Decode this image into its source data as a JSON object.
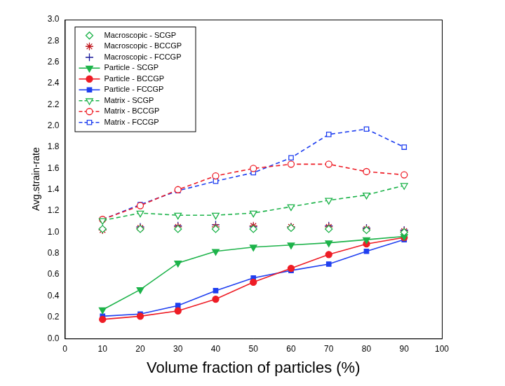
{
  "chart_data": {
    "type": "line",
    "x_label": "Volume fraction of particles (%)",
    "y_label": "Avg.strain-rate",
    "x": [
      10,
      20,
      30,
      40,
      50,
      60,
      70,
      80,
      90
    ],
    "xlim": [
      0,
      100
    ],
    "xticks": [
      0,
      10,
      20,
      30,
      40,
      50,
      60,
      70,
      80,
      90,
      100
    ],
    "ylim": [
      0,
      3
    ],
    "yticks": [
      {
        "value": 0,
        "label": "0.0"
      },
      0.2,
      0.4,
      0.6,
      0.8,
      {
        "value": 1,
        "label": "1.0"
      },
      1.2,
      1.4,
      1.6,
      1.8,
      {
        "value": 2,
        "label": "2.0"
      },
      2.2,
      2.4,
      2.6,
      2.8,
      {
        "value": 3,
        "label": "3.0"
      }
    ],
    "grid": false,
    "legend": "upper left",
    "series": [
      {
        "name": "Macroscopic - SCGP",
        "color": "#1db34a",
        "marker": "open_diamond",
        "line_style": "none",
        "values": [
          1.03,
          1.03,
          1.03,
          1.03,
          1.03,
          1.04,
          1.03,
          1.02,
          1.0
        ]
      },
      {
        "name": "Macroscopic - BCCGP",
        "color": "#c0181f",
        "marker": "star",
        "line_style": "none",
        "values": [
          1.02,
          1.04,
          1.05,
          1.05,
          1.06,
          1.05,
          1.05,
          1.03,
          1.01
        ]
      },
      {
        "name": "Macroscopic - FCCGP",
        "color": "#1a1a9a",
        "marker": "plus",
        "line_style": "none",
        "values": [
          1.03,
          1.05,
          1.06,
          1.07,
          1.05,
          1.05,
          1.06,
          1.04,
          1.02
        ]
      },
      {
        "name": "Particle - SCGP",
        "color": "#1db34a",
        "marker": "triangle_down",
        "line_style": "solid",
        "values": [
          0.27,
          0.46,
          0.71,
          0.82,
          0.86,
          0.88,
          0.9,
          0.93,
          0.96
        ]
      },
      {
        "name": "Particle - BCCGP",
        "color": "#ee1c25",
        "marker": "circle",
        "line_style": "solid",
        "values": [
          0.18,
          0.21,
          0.26,
          0.37,
          0.53,
          0.66,
          0.79,
          0.89,
          0.95
        ]
      },
      {
        "name": "Particle - FCCGP",
        "color": "#1f3ff0",
        "marker": "square",
        "line_style": "solid",
        "values": [
          0.21,
          0.23,
          0.31,
          0.45,
          0.57,
          0.64,
          0.7,
          0.82,
          0.93
        ]
      },
      {
        "name": "Matrix - SCGP",
        "color": "#1db34a",
        "marker": "open_triangle_down",
        "line_style": "dashed",
        "values": [
          1.11,
          1.18,
          1.16,
          1.16,
          1.18,
          1.24,
          1.3,
          1.35,
          1.44
        ]
      },
      {
        "name": "Matrix - BCCGP",
        "color": "#ee1c25",
        "marker": "open_circle",
        "line_style": "dashed",
        "values": [
          1.12,
          1.25,
          1.4,
          1.53,
          1.6,
          1.64,
          1.64,
          1.57,
          1.54
        ]
      },
      {
        "name": "Matrix - FCCGP",
        "color": "#1f3ff0",
        "marker": "open_square",
        "line_style": "dashed",
        "values": [
          1.12,
          1.26,
          1.39,
          1.48,
          1.56,
          1.7,
          1.92,
          1.97,
          1.8
        ]
      }
    ]
  }
}
